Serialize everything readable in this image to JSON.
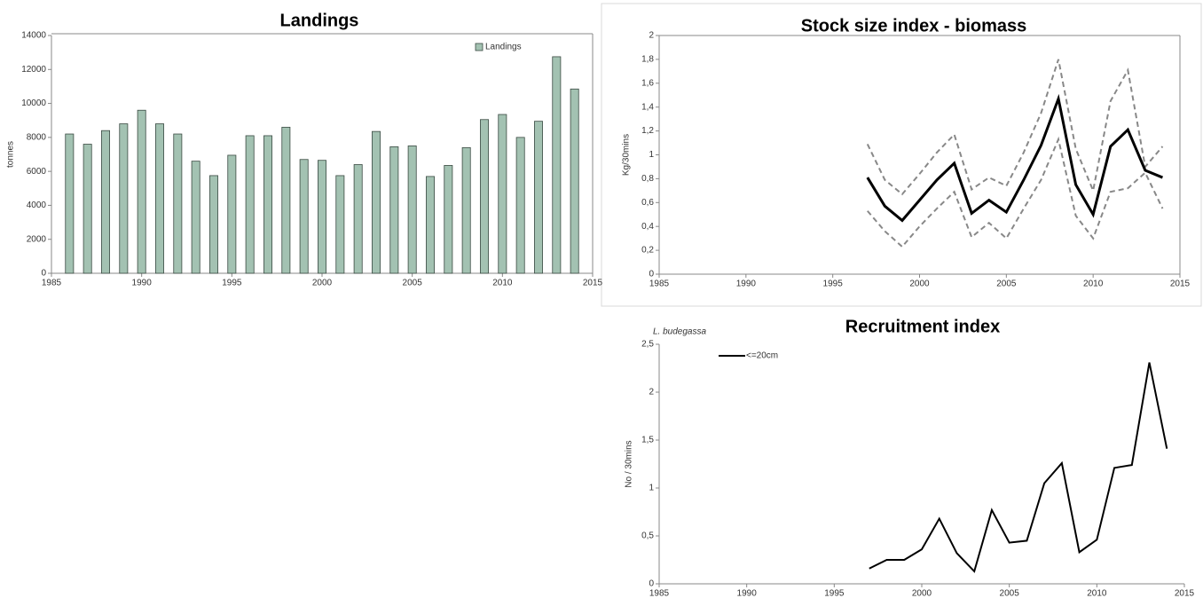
{
  "chart_data": [
    {
      "type": "bar",
      "title": "Landings",
      "y_label": "tonnes",
      "x": [
        1986,
        1987,
        1988,
        1989,
        1990,
        1991,
        1992,
        1993,
        1994,
        1995,
        1996,
        1997,
        1998,
        1999,
        2000,
        2001,
        2002,
        2003,
        2004,
        2005,
        2006,
        2007,
        2008,
        2009,
        2010,
        2011,
        2012,
        2013,
        2014
      ],
      "series": [
        {
          "name": "Landings",
          "color": "#a3c2b2",
          "values": [
            8200,
            7600,
            8400,
            8800,
            9600,
            8800,
            8200,
            6600,
            5750,
            6950,
            8100,
            8100,
            8600,
            6700,
            6650,
            5750,
            6400,
            8350,
            7450,
            7500,
            5700,
            6350,
            7400,
            9050,
            9350,
            8000,
            8950,
            12750,
            10850
          ]
        }
      ],
      "xlim": [
        1985,
        2015
      ],
      "xticks": [
        1985,
        1990,
        1995,
        2000,
        2005,
        2010,
        2015
      ],
      "ylim": [
        0,
        14000
      ],
      "yticks": [
        0,
        2000,
        4000,
        6000,
        8000,
        10000,
        12000,
        14000
      ],
      "legend": "top-right"
    },
    {
      "type": "line",
      "title": "Stock size index - biomass",
      "y_label": "Kg/30mins",
      "x": [
        1997,
        1998,
        1999,
        2000,
        2001,
        2002,
        2003,
        2004,
        2005,
        2006,
        2007,
        2008,
        2009,
        2010,
        2011,
        2012,
        2013,
        2014
      ],
      "series": [
        {
          "color": "#888888",
          "line_style": "dashed",
          "values": [
            1.09,
            0.79,
            0.67,
            0.84,
            1.02,
            1.17,
            0.71,
            0.81,
            0.74,
            1.02,
            1.35,
            1.8,
            1.05,
            0.7,
            1.45,
            1.71,
            0.9,
            1.07
          ]
        },
        {
          "color": "#888888",
          "line_style": "dashed",
          "values": [
            0.53,
            0.36,
            0.23,
            0.4,
            0.55,
            0.69,
            0.31,
            0.43,
            0.3,
            0.55,
            0.79,
            1.13,
            0.49,
            0.3,
            0.69,
            0.72,
            0.85,
            0.55
          ]
        },
        {
          "color": "#000000",
          "line_style": "solid",
          "width": 3,
          "values": [
            0.81,
            0.57,
            0.45,
            0.62,
            0.79,
            0.93,
            0.51,
            0.62,
            0.52,
            0.79,
            1.08,
            1.47,
            0.75,
            0.5,
            1.07,
            1.21,
            0.87,
            0.81
          ]
        }
      ],
      "xlim": [
        1985,
        2015
      ],
      "xticks": [
        1985,
        1990,
        1995,
        2000,
        2005,
        2010,
        2015
      ],
      "ylim": [
        0,
        2
      ],
      "yticks": [
        0,
        {
          "value": 0.2,
          "label": "0,2"
        },
        {
          "value": 0.4,
          "label": "0,4"
        },
        {
          "value": 0.6,
          "label": "0,6"
        },
        {
          "value": 0.8,
          "label": "0,8"
        },
        1,
        {
          "value": 1.2,
          "label": "1,2"
        },
        {
          "value": 1.4,
          "label": "1,4"
        },
        {
          "value": 1.6,
          "label": "1,6"
        },
        {
          "value": 1.8,
          "label": "1,8"
        },
        2
      ]
    },
    {
      "type": "line",
      "title": "Recruitment index",
      "annotation": "L. budegassa",
      "y_label": "No / 30mins",
      "x": [
        1997,
        1998,
        1999,
        2000,
        2001,
        2002,
        2003,
        2004,
        2005,
        2006,
        2007,
        2008,
        2009,
        2010,
        2011,
        2012,
        2013,
        2014
      ],
      "series": [
        {
          "name": "<=20cm",
          "color": "#000000",
          "line_style": "solid",
          "width": 2,
          "values": [
            0.16,
            0.25,
            0.25,
            0.36,
            0.68,
            0.32,
            0.13,
            0.77,
            0.43,
            0.45,
            1.05,
            1.26,
            0.33,
            0.46,
            1.21,
            1.24,
            2.31,
            1.41
          ]
        }
      ],
      "xlim": [
        1985,
        2015
      ],
      "xticks": [
        1985,
        1990,
        1995,
        2000,
        2005,
        2010,
        2015
      ],
      "ylim": [
        0,
        2.5
      ],
      "yticks": [
        0,
        {
          "value": 0.5,
          "label": "0,5"
        },
        1,
        {
          "value": 1.5,
          "label": "1,5"
        },
        2,
        {
          "value": 2.5,
          "label": "2,5"
        }
      ],
      "legend": "top-left"
    }
  ]
}
